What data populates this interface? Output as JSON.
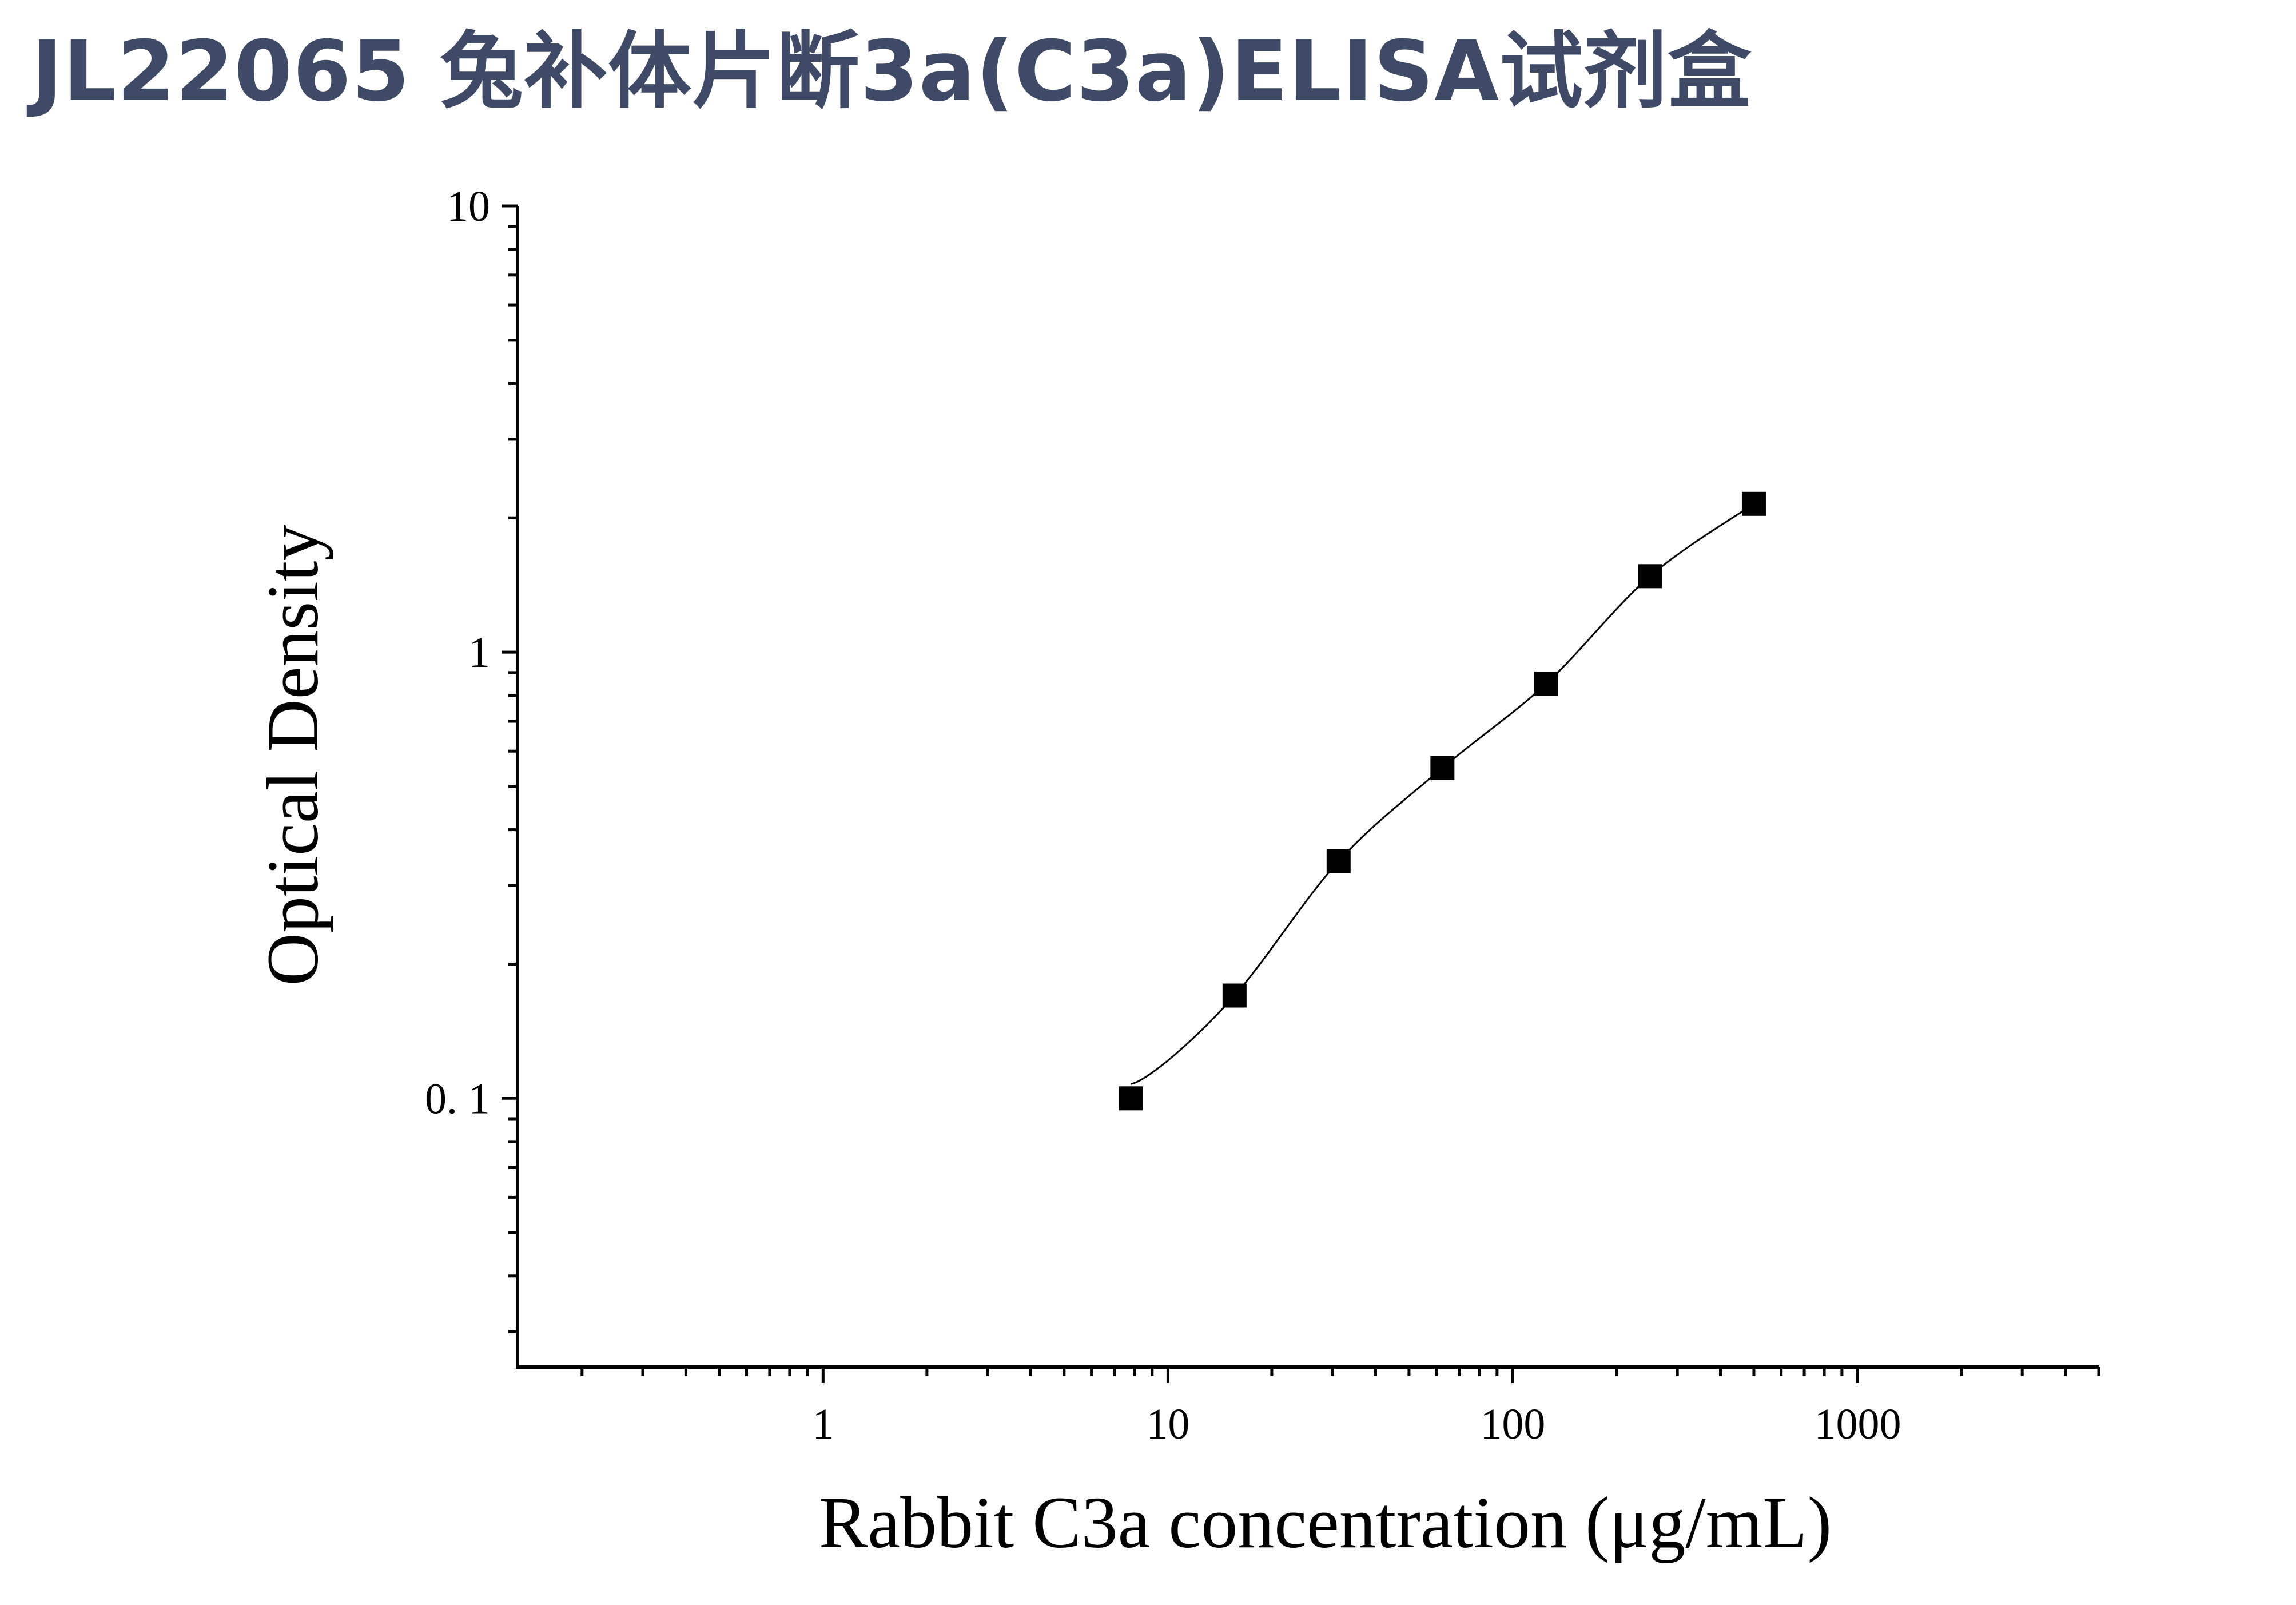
{
  "title": "JL22065 兔补体片断3a(C3a)ELISA试剂盒",
  "chart_data": {
    "type": "scatter",
    "xlabel": "Rabbit C3a concentration (μg/mL)",
    "ylabel": "Optical Density",
    "xscale": "log",
    "yscale": "log",
    "xlim": [
      0.13,
      5000
    ],
    "ylim": [
      0.025,
      10
    ],
    "x_ticks": [
      {
        "value": 1,
        "label": "1"
      },
      {
        "value": 10,
        "label": "10"
      },
      {
        "value": 100,
        "label": "100"
      },
      {
        "value": 1000,
        "label": "1000"
      }
    ],
    "y_ticks": [
      {
        "value": 0.1,
        "label": "0. 1"
      },
      {
        "value": 1,
        "label": "1"
      },
      {
        "value": 10,
        "label": "10"
      }
    ],
    "series": [
      {
        "marker": "square",
        "x": [
          7.8,
          15.6,
          31.25,
          62.5,
          125,
          250,
          500
        ],
        "y": [
          0.1,
          0.17,
          0.34,
          0.55,
          0.85,
          1.48,
          2.15
        ]
      }
    ],
    "fit_curve": true,
    "grid": false,
    "colors": {
      "title": "#3f4a66",
      "marker": "#000000",
      "axis": "#000000"
    }
  }
}
